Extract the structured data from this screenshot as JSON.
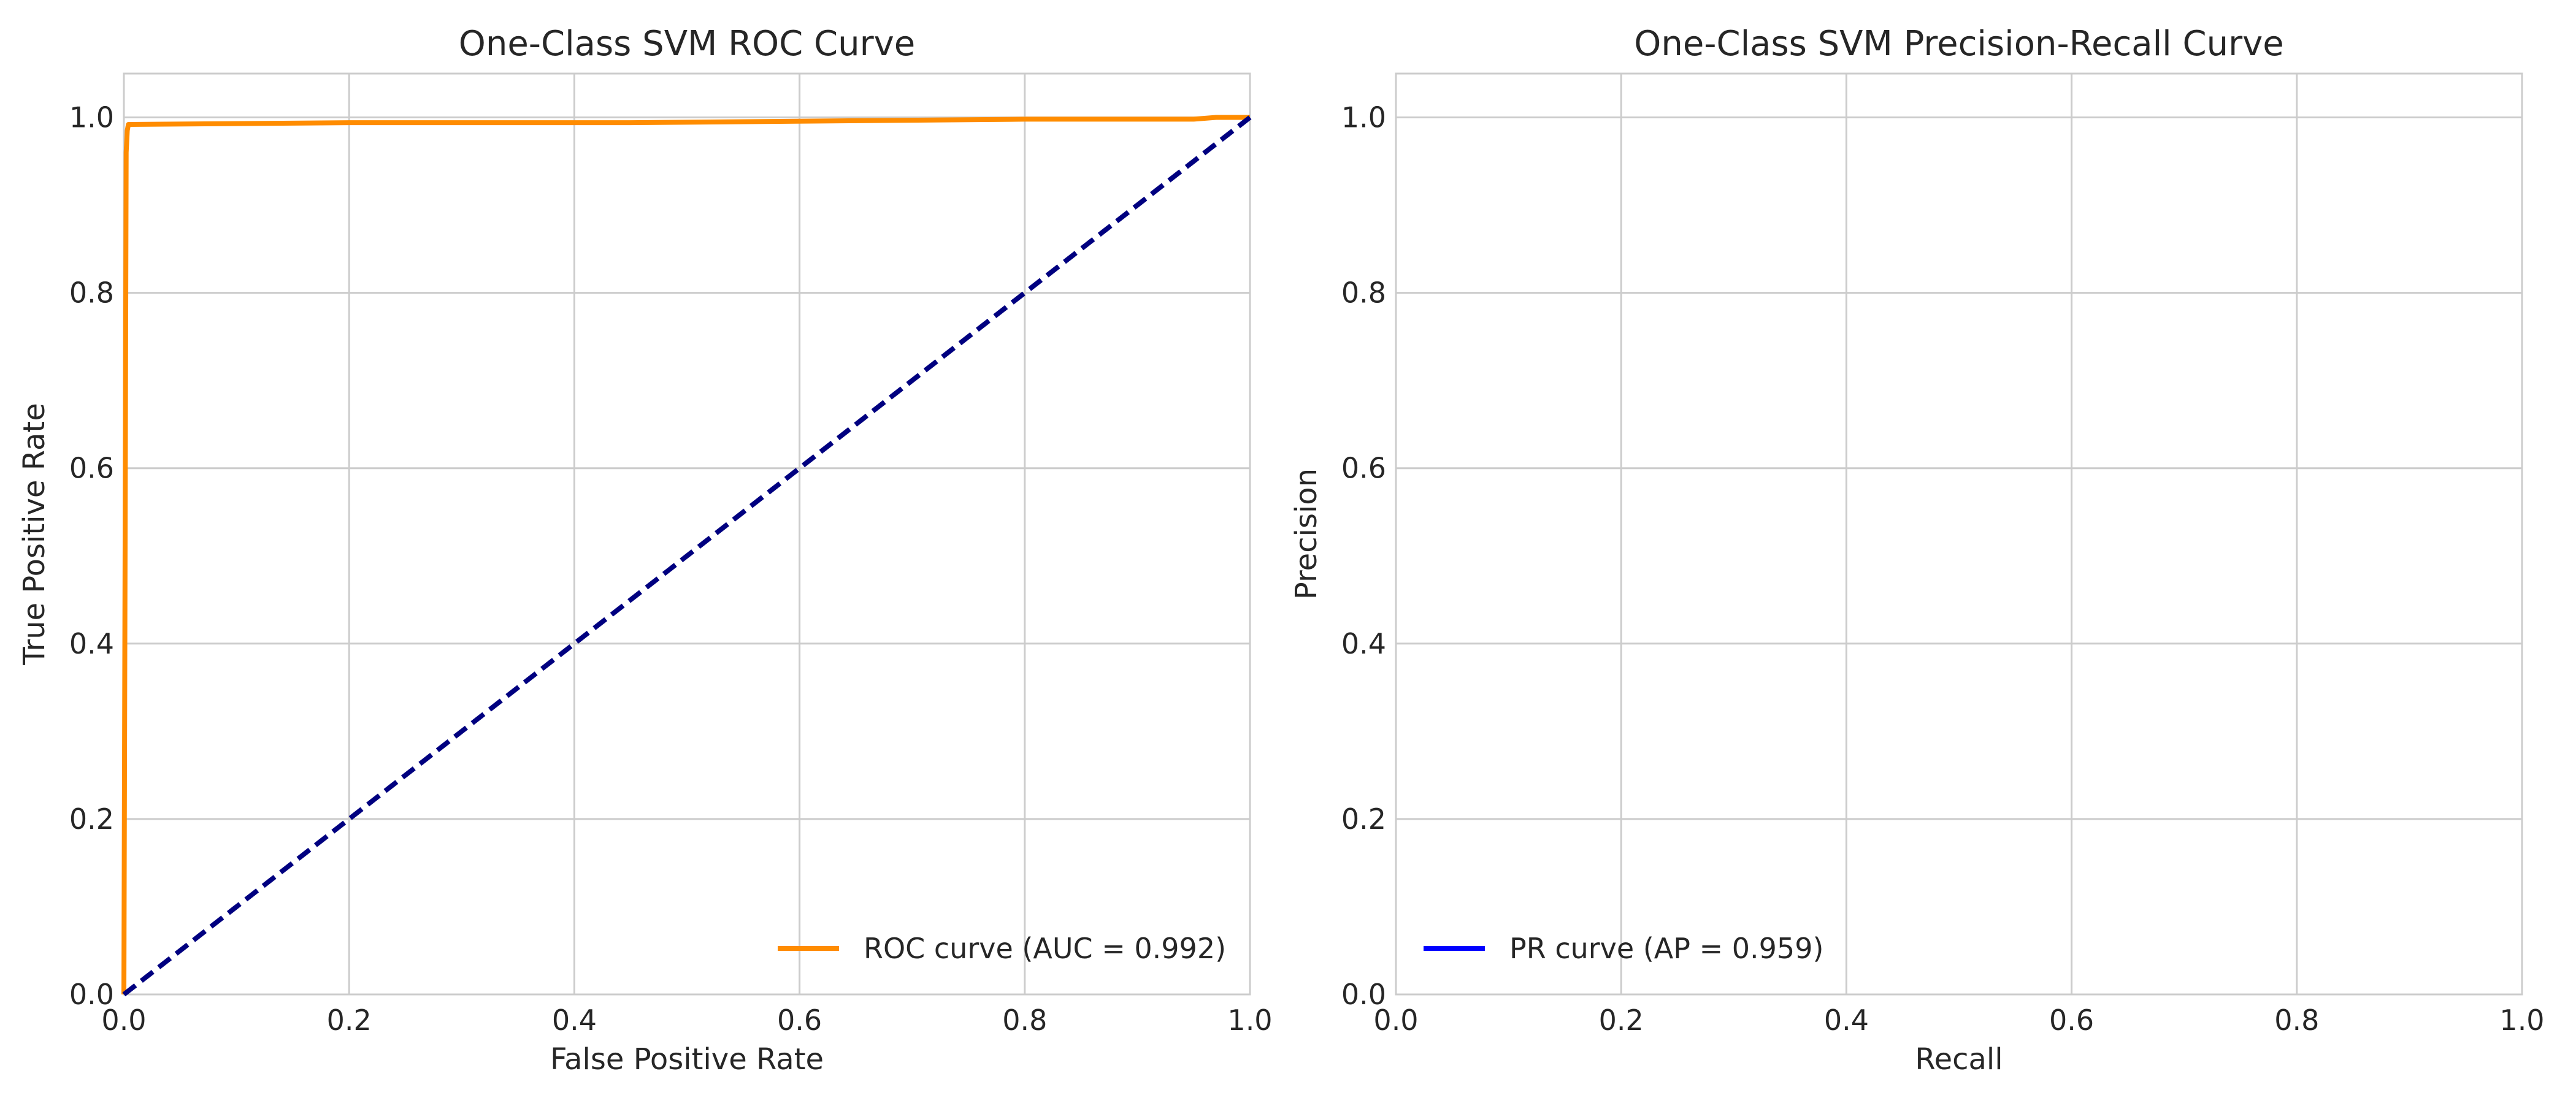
{
  "chart_data": [
    {
      "type": "line",
      "title": "One-Class SVM ROC Curve",
      "xlabel": "False Positive Rate",
      "ylabel": "True Positive Rate",
      "xlim": [
        0.0,
        1.0
      ],
      "ylim": [
        0.0,
        1.05
      ],
      "xticks": [
        "0.0",
        "0.2",
        "0.4",
        "0.6",
        "0.8",
        "1.0"
      ],
      "yticks": [
        "0.0",
        "0.2",
        "0.4",
        "0.6",
        "0.8",
        "1.0"
      ],
      "grid": true,
      "legend_position": "lower-right",
      "series": [
        {
          "name": "ROC curve (AUC = 0.992)",
          "color": "#ff8c00",
          "style": "solid",
          "x": [
            0.0,
            0.002,
            0.003,
            0.004,
            0.2,
            0.45,
            0.8,
            0.95,
            0.97,
            1.0
          ],
          "y": [
            0.0,
            0.96,
            0.985,
            0.992,
            0.994,
            0.994,
            0.998,
            0.998,
            1.0,
            1.0
          ]
        },
        {
          "color": "#000080",
          "style": "dashed",
          "x": [
            0.0,
            1.0
          ],
          "y": [
            0.0,
            1.0
          ]
        }
      ]
    },
    {
      "type": "line",
      "title": "One-Class SVM Precision-Recall Curve",
      "xlabel": "Recall",
      "ylabel": "Precision",
      "xlim": [
        0.0,
        1.0
      ],
      "ylim": [
        0.0,
        1.05
      ],
      "xticks": [
        "0.0",
        "0.2",
        "0.4",
        "0.6",
        "0.8",
        "1.0"
      ],
      "yticks": [
        "0.0",
        "0.2",
        "0.4",
        "0.6",
        "0.8",
        "1.0"
      ],
      "grid": true,
      "legend_position": "lower-left",
      "series": [
        {
          "name": "PR curve (AP = 0.959)",
          "color": "#0000ff",
          "style": "solid",
          "x": [],
          "y": []
        }
      ]
    }
  ]
}
